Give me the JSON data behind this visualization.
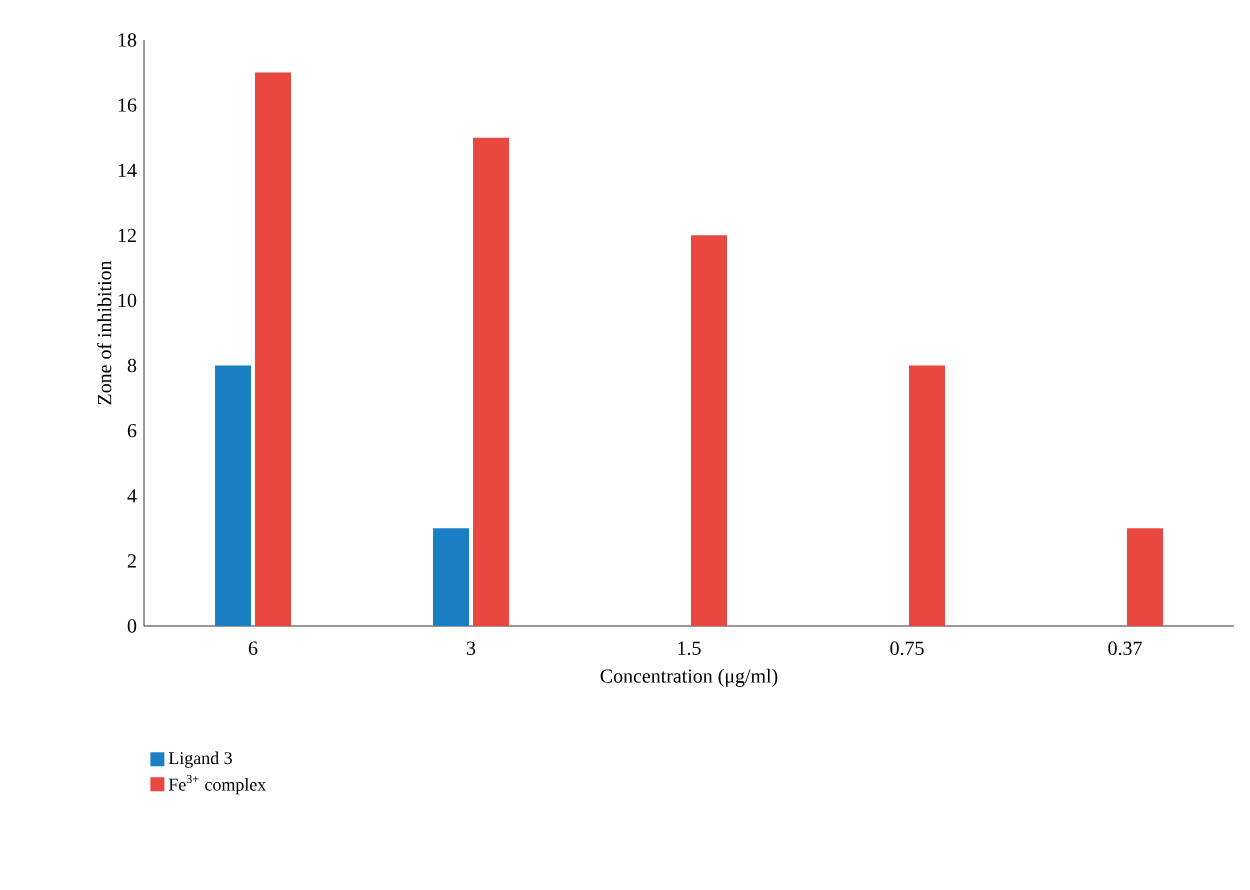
{
  "chart_data": {
    "type": "bar",
    "xlabel": "Concentration (μg/ml)",
    "ylabel": "Zone of inhibition",
    "categories": [
      "6",
      "3",
      "1.5",
      "0.75",
      "0.37"
    ],
    "series": [
      {
        "name": "Ligand 3",
        "color": "#1b7fc4",
        "values": [
          8,
          3,
          0,
          0,
          0
        ]
      },
      {
        "name": "Fe$^{3+}$ complex",
        "color": "#e8483f",
        "values": [
          17,
          15,
          12,
          8,
          3
        ]
      }
    ],
    "ylim": [
      0,
      18
    ],
    "yticks": [
      0,
      2,
      4,
      6,
      8,
      10,
      12,
      14,
      16,
      18
    ],
    "grid": false,
    "legend": "bottom left"
  }
}
